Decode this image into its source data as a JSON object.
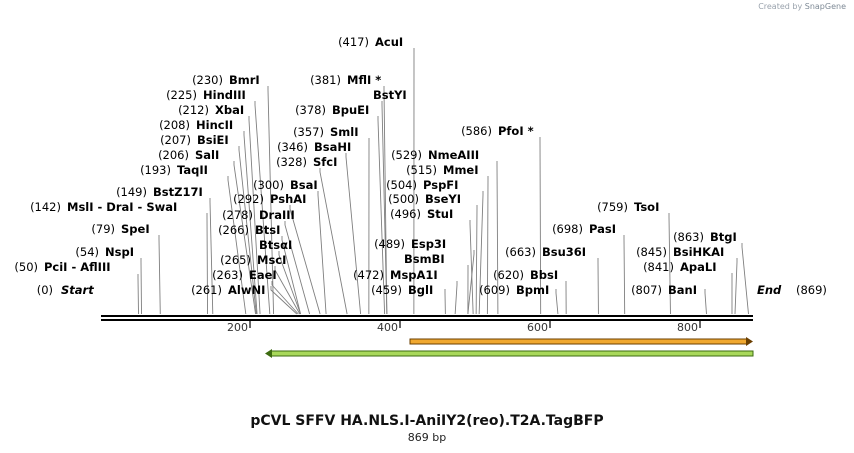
{
  "credit": {
    "prefix": "Created by",
    "brand": "SnapGene"
  },
  "title": "pCVL SFFV HA.NLS.I-AniIY2(reo).T2A.TagBFP",
  "subtitle": "869 bp",
  "total_bp": 869,
  "start_label": {
    "pos": "(0)",
    "name": "Start"
  },
  "end_label": {
    "name": "End",
    "pos": "(869)"
  },
  "axis_ticks": [
    "200",
    "400",
    "600",
    "800"
  ],
  "features": [
    {
      "name": "orange-feature",
      "direction": "forward",
      "color": "#f0a830",
      "border": "#6b3f00"
    },
    {
      "name": "green-feature",
      "direction": "reverse",
      "color": "#a8d85a",
      "border": "#3d6b10"
    }
  ],
  "sites": [
    {
      "id": "pcil",
      "pos": "(50)",
      "names": [
        "PciI",
        "AflIII"
      ]
    },
    {
      "id": "nspi",
      "pos": "(54)",
      "names": [
        "NspI"
      ]
    },
    {
      "id": "spei",
      "pos": "(79)",
      "names": [
        "SpeI"
      ]
    },
    {
      "id": "msli",
      "pos": "(142)",
      "names": [
        "MslI",
        "DraI",
        "SwaI"
      ]
    },
    {
      "id": "bstz17i",
      "pos": "(149)",
      "names": [
        "BstZ17I"
      ]
    },
    {
      "id": "taqii",
      "pos": "(193)",
      "names": [
        "TaqII"
      ]
    },
    {
      "id": "sali",
      "pos": "(206)",
      "names": [
        "SalI"
      ]
    },
    {
      "id": "bsiei",
      "pos": "(207)",
      "names": [
        "BsiEI"
      ]
    },
    {
      "id": "hincii",
      "pos": "(208)",
      "names": [
        "HincII"
      ]
    },
    {
      "id": "xbai",
      "pos": "(212)",
      "names": [
        "XbaI"
      ]
    },
    {
      "id": "hindiii",
      "pos": "(225)",
      "names": [
        "HindIII"
      ]
    },
    {
      "id": "bmri",
      "pos": "(230)",
      "names": [
        "BmrI"
      ]
    },
    {
      "id": "alwni",
      "pos": "(261)",
      "names": [
        "AlwNI"
      ]
    },
    {
      "id": "eaei",
      "pos": "(263)",
      "names": [
        "EaeI"
      ]
    },
    {
      "id": "msci",
      "pos": "(265)",
      "names": [
        "MscI"
      ]
    },
    {
      "id": "btsai",
      "pos": "",
      "names": [
        "BtsαI"
      ]
    },
    {
      "id": "btsi",
      "pos": "(266)",
      "names": [
        "BtsI"
      ]
    },
    {
      "id": "draiii",
      "pos": "(278)",
      "names": [
        "DraIII"
      ]
    },
    {
      "id": "pshai",
      "pos": "(292)",
      "names": [
        "PshAI"
      ]
    },
    {
      "id": "bsai",
      "pos": "(300)",
      "names": [
        "BsaI"
      ]
    },
    {
      "id": "sfci",
      "pos": "(328)",
      "names": [
        "SfcI"
      ]
    },
    {
      "id": "bsahi",
      "pos": "(346)",
      "names": [
        "BsaHI"
      ]
    },
    {
      "id": "smli",
      "pos": "(357)",
      "names": [
        "SmlI"
      ]
    },
    {
      "id": "bpuei",
      "pos": "(378)",
      "names": [
        "BpuEI"
      ]
    },
    {
      "id": "bstyi",
      "pos": "",
      "names": [
        "BstYI"
      ]
    },
    {
      "id": "mfli",
      "pos": "(381)",
      "names": [
        "MflI *"
      ]
    },
    {
      "id": "acui",
      "pos": "(417)",
      "names": [
        "AcuI"
      ]
    },
    {
      "id": "bgli",
      "pos": "(459)",
      "names": [
        "BglI"
      ]
    },
    {
      "id": "mspa1i",
      "pos": "(472)",
      "names": [
        "MspA1I"
      ]
    },
    {
      "id": "bsmbi",
      "pos": "",
      "names": [
        "BsmBI"
      ]
    },
    {
      "id": "esp3i",
      "pos": "(489)",
      "names": [
        "Esp3I"
      ]
    },
    {
      "id": "stui",
      "pos": "(496)",
      "names": [
        "StuI"
      ]
    },
    {
      "id": "bseyi",
      "pos": "(500)",
      "names": [
        "BseYI"
      ]
    },
    {
      "id": "pspfi",
      "pos": "(504)",
      "names": [
        "PspFI"
      ]
    },
    {
      "id": "mmei",
      "pos": "(515)",
      "names": [
        "MmeI"
      ]
    },
    {
      "id": "nmeaiii",
      "pos": "(529)",
      "names": [
        "NmeAIII"
      ]
    },
    {
      "id": "pfoi",
      "pos": "(586)",
      "names": [
        "PfoI *"
      ]
    },
    {
      "id": "bpmi",
      "pos": "(609)",
      "names": [
        "BpmI"
      ]
    },
    {
      "id": "bbsi",
      "pos": "(620)",
      "names": [
        "BbsI"
      ]
    },
    {
      "id": "bsu36i",
      "pos": "(663)",
      "names": [
        "Bsu36I"
      ]
    },
    {
      "id": "pasi",
      "pos": "(698)",
      "names": [
        "PasI"
      ]
    },
    {
      "id": "tsoi",
      "pos": "(759)",
      "names": [
        "TsoI"
      ]
    },
    {
      "id": "bani",
      "pos": "(807)",
      "names": [
        "BanI"
      ]
    },
    {
      "id": "apali",
      "pos": "(841)",
      "names": [
        "ApaLI"
      ]
    },
    {
      "id": "bsihkai",
      "pos": "(845)",
      "names": [
        "BsiHKAI"
      ]
    },
    {
      "id": "btgi",
      "pos": "(863)",
      "names": [
        "BtgI"
      ]
    }
  ]
}
